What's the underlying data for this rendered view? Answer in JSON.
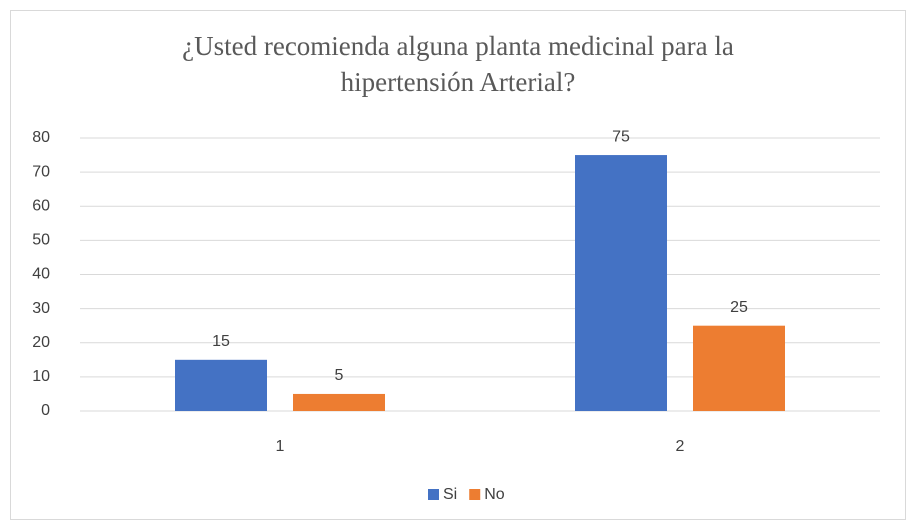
{
  "chart_data": {
    "type": "bar",
    "title": "¿Usted recomienda alguna planta medicinal para la hipertensión Arterial?",
    "categories": [
      "1",
      "2"
    ],
    "series": [
      {
        "name": "Si",
        "color": "#4472c4",
        "values": [
          15,
          75
        ]
      },
      {
        "name": "No",
        "color": "#ed7d31",
        "values": [
          5,
          25
        ]
      }
    ],
    "ylim": [
      0,
      80
    ],
    "yticks": [
      0,
      10,
      20,
      30,
      40,
      50,
      60,
      70,
      80
    ],
    "grid": true,
    "legend": "bottom"
  }
}
